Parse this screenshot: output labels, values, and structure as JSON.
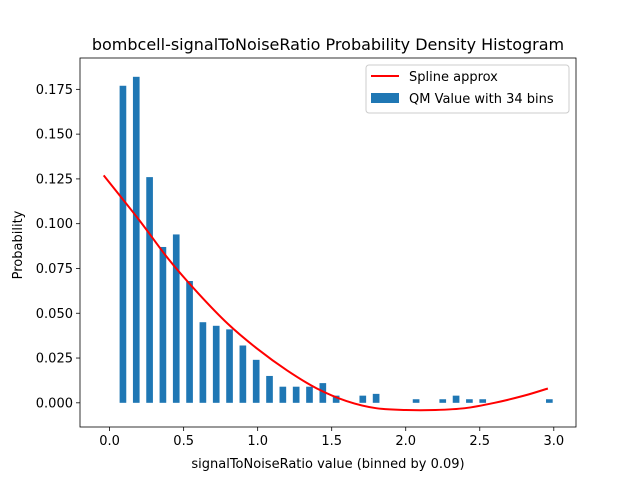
{
  "chart_data": {
    "type": "bar",
    "title": "bombcell-signalToNoiseRatio Probability Density Histogram",
    "xlabel": "signalToNoiseRatio value (binned by 0.09)",
    "ylabel": "Probability",
    "xlim": [
      -0.2,
      3.15
    ],
    "ylim": [
      -0.0135,
      0.1925
    ],
    "xticks": [
      0.0,
      0.5,
      1.0,
      1.5,
      2.0,
      2.5,
      3.0
    ],
    "xtick_labels": [
      "0.0",
      "0.5",
      "1.0",
      "1.5",
      "2.0",
      "2.5",
      "3.0"
    ],
    "yticks": [
      0.0,
      0.025,
      0.05,
      0.075,
      0.1,
      0.125,
      0.15,
      0.175
    ],
    "ytick_labels": [
      "0.000",
      "0.025",
      "0.050",
      "0.075",
      "0.100",
      "0.125",
      "0.150",
      "0.175"
    ],
    "legend": {
      "placement": "top-right",
      "entries": [
        "Spline approx",
        "QM Value with 34 bins"
      ]
    },
    "series": [
      {
        "name": "QM Value with 34 bins",
        "kind": "bar",
        "color": "#1f77b4",
        "x": [
          0.09,
          0.18,
          0.27,
          0.36,
          0.45,
          0.54,
          0.63,
          0.72,
          0.81,
          0.9,
          0.99,
          1.08,
          1.17,
          1.26,
          1.35,
          1.44,
          1.53,
          1.62,
          1.71,
          1.8,
          1.89,
          1.98,
          2.07,
          2.16,
          2.25,
          2.34,
          2.43,
          2.52,
          2.61,
          2.7,
          2.79,
          2.88,
          2.97
        ],
        "values": [
          0.177,
          0.182,
          0.126,
          0.087,
          0.094,
          0.068,
          0.045,
          0.043,
          0.041,
          0.032,
          0.024,
          0.015,
          0.009,
          0.009,
          0.009,
          0.011,
          0.004,
          0.0,
          0.004,
          0.005,
          0.0,
          0.0,
          0.002,
          0.0,
          0.002,
          0.004,
          0.002,
          0.002,
          0.0,
          0.0,
          0.0,
          0.0,
          0.002
        ],
        "bar_width": 0.045
      },
      {
        "name": "Spline approx",
        "kind": "line",
        "color": "#ff0000",
        "x": [
          -0.04,
          0.2,
          0.4,
          0.6,
          0.8,
          1.0,
          1.2,
          1.4,
          1.6,
          1.8,
          2.0,
          2.2,
          2.4,
          2.6,
          2.8,
          2.96
        ],
        "values": [
          0.127,
          0.102,
          0.08,
          0.061,
          0.044,
          0.03,
          0.018,
          0.008,
          0.001,
          -0.003,
          -0.004,
          -0.004,
          -0.003,
          0.0,
          0.004,
          0.008
        ]
      }
    ]
  }
}
